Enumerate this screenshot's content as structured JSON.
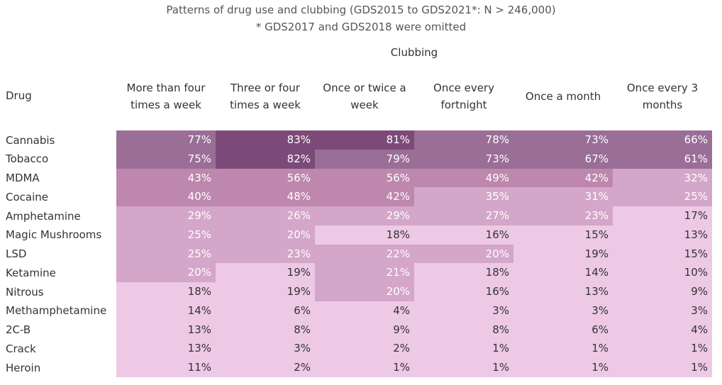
{
  "chart_data": {
    "type": "table",
    "title": "Patterns of drug use and clubbing (GDS2015 to GDS2021*: N > 246,000)",
    "subtitle": "* GDS2017 and GDS2018 were omitted",
    "column_group_label": "Clubbing",
    "row_header": "Drug",
    "columns": [
      [
        "More than four",
        "times a week"
      ],
      [
        "Three or four",
        "times a week"
      ],
      [
        "Once or twice a",
        "week"
      ],
      [
        "Once every",
        "fortnight"
      ],
      [
        "Once a month"
      ],
      [
        "Once every 3",
        "months"
      ]
    ],
    "rows": [
      {
        "drug": "Cannabis",
        "values": [
          77,
          83,
          81,
          78,
          73,
          66
        ]
      },
      {
        "drug": "Tobacco",
        "values": [
          75,
          82,
          79,
          73,
          67,
          61
        ]
      },
      {
        "drug": "MDMA",
        "values": [
          43,
          56,
          56,
          49,
          42,
          32
        ]
      },
      {
        "drug": "Cocaine",
        "values": [
          40,
          48,
          42,
          35,
          31,
          25
        ]
      },
      {
        "drug": "Amphetamine",
        "values": [
          29,
          26,
          29,
          27,
          23,
          17
        ]
      },
      {
        "drug": "Magic Mushrooms",
        "values": [
          25,
          20,
          18,
          16,
          15,
          13
        ]
      },
      {
        "drug": "LSD",
        "values": [
          25,
          23,
          22,
          20,
          19,
          15
        ]
      },
      {
        "drug": "Ketamine",
        "values": [
          20,
          19,
          21,
          18,
          14,
          10
        ]
      },
      {
        "drug": "Nitrous",
        "values": [
          18,
          19,
          20,
          16,
          13,
          9
        ]
      },
      {
        "drug": "Methamphetamine",
        "values": [
          14,
          6,
          4,
          3,
          3,
          3
        ]
      },
      {
        "drug": "2C-B",
        "values": [
          13,
          8,
          9,
          8,
          6,
          4
        ]
      },
      {
        "drug": "Crack",
        "values": [
          13,
          3,
          2,
          1,
          1,
          1
        ]
      },
      {
        "drug": "Heroin",
        "values": [
          11,
          2,
          1,
          1,
          1,
          1
        ]
      }
    ],
    "unit_suffix": "%",
    "color_scale": [
      "#edc9e6",
      "#d4a6c9",
      "#bd87ae",
      "#9a6e96",
      "#7c4a78"
    ]
  }
}
